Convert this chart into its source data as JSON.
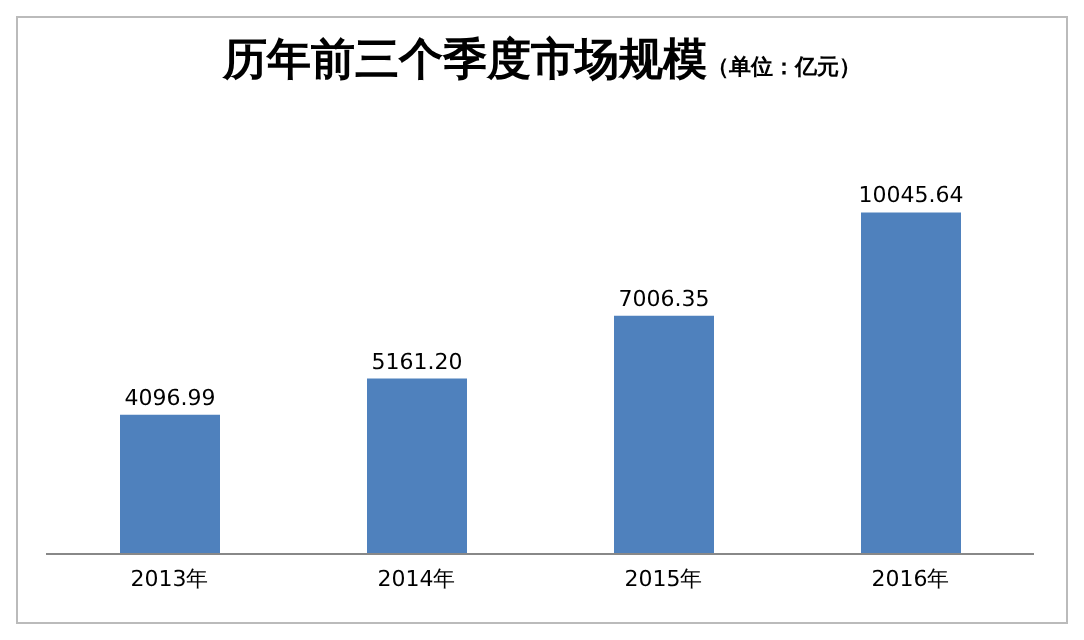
{
  "chart_data": {
    "type": "bar",
    "title": "历年前三个季度市场规模",
    "subtitle": "（单位：亿元）",
    "categories": [
      "2013年",
      "2014年",
      "2015年",
      "2016年"
    ],
    "values": [
      4096.99,
      5161.2,
      7006.35,
      10045.64
    ],
    "value_labels": [
      "4096.99",
      "5161.20",
      "7006.35",
      "10045.64"
    ],
    "color": "#4f81bd",
    "grid": false,
    "legend": false
  }
}
